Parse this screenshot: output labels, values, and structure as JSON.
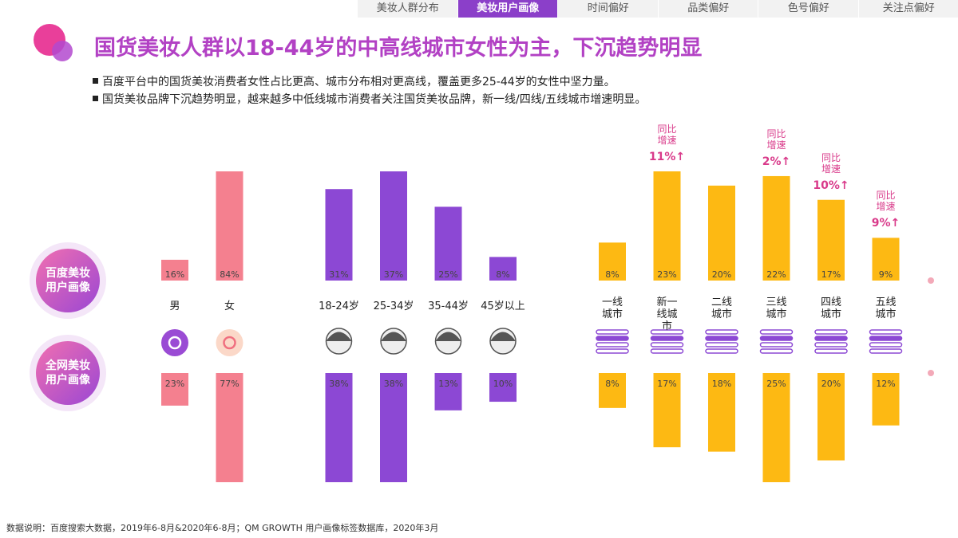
{
  "nav": {
    "tabs": [
      "美妆人群分布",
      "美妆用户画像",
      "时间偏好",
      "品类偏好",
      "色号偏好",
      "关注点偏好"
    ],
    "active": 1
  },
  "title": "国货美妆人群以18-44岁的中高线城市女性为主，下沉趋势明显",
  "bullets": [
    "百度平台中的国货美妆消费者女性占比更高、城市分布相对更高线，覆盖更多25-44岁的女性中坚力量。",
    "国货美妆品牌下沉趋势明显，越来越多中低线城市消费者关注国货美妆品牌，新一线/四线/五线城市增速明显。"
  ],
  "footnote": "数据说明：百度搜索大数据，2019年6-8月&2020年6-8月；QM GROWTH 用户画像标签数据库，2020年3月",
  "chart_data": {
    "type": "bar",
    "categories": [
      "男",
      "女",
      "18-24岁",
      "25-34岁",
      "35-44岁",
      "45岁以上",
      "一线城市",
      "新一线城市",
      "二线城市",
      "三线城市",
      "四线城市",
      "五线城市"
    ],
    "colors": [
      "#f4808f",
      "#f4808f",
      "#8c48d4",
      "#8c48d4",
      "#8c48d4",
      "#8c48d4",
      "#fdb913",
      "#fdb913",
      "#fdb913",
      "#fdb913",
      "#fdb913",
      "#fdb913"
    ],
    "series": [
      {
        "name": "百度美妆用户画像",
        "values": [
          16,
          84,
          31,
          37,
          25,
          8,
          8,
          23,
          20,
          22,
          17,
          9
        ],
        "value_labels": [
          "16%",
          "84%",
          "31%",
          "37%",
          "25%",
          "8%",
          "8%",
          "23%",
          "20%",
          "22%",
          "17%",
          "9%"
        ]
      },
      {
        "name": "全网美妆用户画像",
        "values": [
          23,
          77,
          38,
          38,
          13,
          10,
          8,
          17,
          18,
          25,
          20,
          12
        ],
        "value_labels": [
          "23%",
          "77%",
          "38%",
          "38%",
          "13%",
          "10%",
          "8%",
          "17%",
          "18%",
          "25%",
          "20%",
          "12%"
        ]
      }
    ],
    "growth": {
      "label": "同比增速",
      "values": [
        null,
        null,
        null,
        null,
        null,
        null,
        null,
        11,
        null,
        2,
        10,
        9
      ],
      "value_labels": [
        null,
        null,
        null,
        null,
        null,
        null,
        null,
        "11%↑",
        null,
        "2%↑",
        "10%↑",
        "9%↑"
      ]
    }
  }
}
